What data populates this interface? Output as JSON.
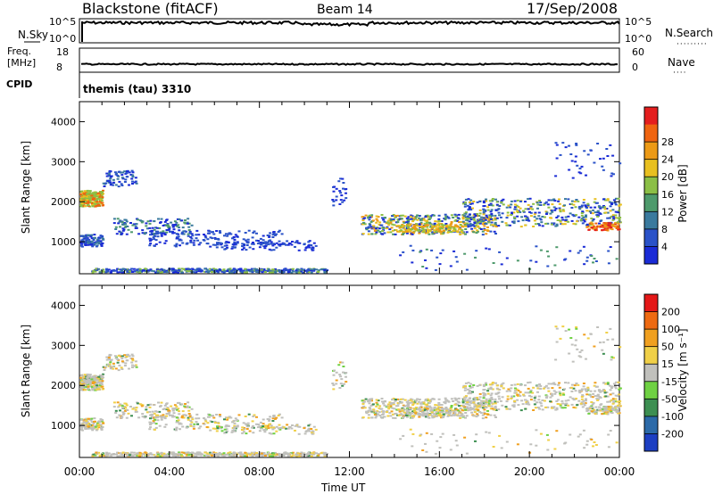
{
  "header": {
    "radar": "Blackstone (fitACF)",
    "beam": "Beam 14",
    "date": "17/Sep/2008"
  },
  "top_panels": {
    "nsky_label": "N.Sky",
    "nsky_ticks": [
      "10^5",
      "10^0"
    ],
    "nsearch_label": "N.Search",
    "nsearch_ticks": [
      "10^5",
      "10^0"
    ],
    "freq_label_1": "Freq.",
    "freq_label_2": "[MHz]",
    "freq_ticks": [
      "18",
      "8"
    ],
    "nave_label": "Nave",
    "nave_ticks": [
      "60",
      "0"
    ],
    "cpid_label": "CPID",
    "cpid_value": "themis (tau) 3310"
  },
  "chart_data": [
    {
      "type": "heatmap",
      "ylabel": "Slant Range [km]",
      "xlabel": "",
      "ylim": [
        200,
        4500
      ],
      "xlim_hours": [
        0,
        24
      ],
      "yticks": [
        1000,
        2000,
        3000,
        4000
      ],
      "colorbar": {
        "label": "Power [dB]",
        "ticks": [
          "4",
          "8",
          "12",
          "16",
          "20",
          "24",
          "28"
        ],
        "colors": [
          "#1a2bd6",
          "#2a52c8",
          "#3a7a9e",
          "#4e9a6c",
          "#8bbf46",
          "#e8c020",
          "#ec9a16",
          "#ef6410",
          "#e41e1e"
        ]
      }
    },
    {
      "type": "heatmap",
      "ylabel": "Slant Range [km]",
      "xlabel": "Time UT",
      "ylim": [
        200,
        4500
      ],
      "xlim_hours": [
        0,
        24
      ],
      "yticks": [
        1000,
        2000,
        3000,
        4000
      ],
      "xticks": [
        "00:00",
        "04:00",
        "08:00",
        "12:00",
        "16:00",
        "20:00",
        "00:00"
      ],
      "colorbar": {
        "label": "Velocity [m s⁻¹]",
        "ticks": [
          "200",
          "100",
          "50",
          "15",
          "-15",
          "-50",
          "-100",
          "-200"
        ],
        "colors": [
          "#1d3fc2",
          "#2c6aa8",
          "#3d8f52",
          "#6fd143",
          "#c0c0bc",
          "#f0d048",
          "#f0a020",
          "#ee6a12",
          "#e41818"
        ]
      }
    }
  ]
}
